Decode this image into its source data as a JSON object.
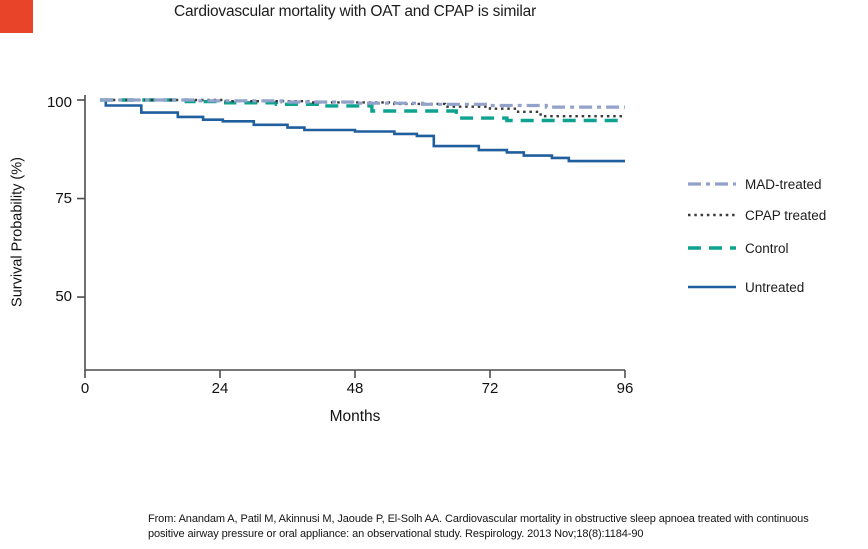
{
  "slide": {
    "corner_mark_color": "#e8442a",
    "citation_lines": [
      "From: Anandam A, Patil M, Akinnusi M, Jaoude P, El-Solh AA. Cardiovascular mortality in obstructive sleep apnoea treated with continuous",
      "positive airway pressure or oral appliance: an observational study. Respirology. 2013 Nov;18(8):1184-90"
    ]
  },
  "chart_data": {
    "type": "line",
    "subtype": "kaplan-meier-step",
    "title": "Cardiovascular mortality with OAT and CPAP is similar",
    "xlabel": "Months",
    "ylabel": "Survival Probability (%)",
    "xlim": [
      0,
      96
    ],
    "ylim": [
      31.5,
      100
    ],
    "xticks": [
      0,
      24,
      48,
      72,
      96
    ],
    "yticks": [
      100,
      75,
      50
    ],
    "grid": false,
    "legend_position": "right",
    "axis_color": "#4d4d4d",
    "series": [
      {
        "name": "Untreated",
        "color": "#205f9e",
        "style": "solid",
        "points": [
          [
            2.7,
            100
          ],
          [
            3.7,
            98.6
          ],
          [
            10,
            96.8
          ],
          [
            16.5,
            95.7
          ],
          [
            21,
            95.0
          ],
          [
            24.5,
            94.6
          ],
          [
            30,
            93.7
          ],
          [
            36,
            93.0
          ],
          [
            39,
            92.4
          ],
          [
            48,
            92.0
          ],
          [
            55,
            91.4
          ],
          [
            59,
            90.9
          ],
          [
            62,
            88.3
          ],
          [
            70,
            87.3
          ],
          [
            75,
            86.7
          ],
          [
            78,
            85.9
          ],
          [
            83,
            85.3
          ],
          [
            86,
            84.5
          ],
          [
            96,
            84.5
          ]
        ]
      },
      {
        "name": "Control",
        "color": "#0fa290",
        "style": "dash",
        "points": [
          [
            2.7,
            100
          ],
          [
            18,
            99.6
          ],
          [
            25,
            99.3
          ],
          [
            34,
            98.9
          ],
          [
            42,
            98.5
          ],
          [
            51,
            97.2
          ],
          [
            66,
            95.4
          ],
          [
            75,
            94.8
          ],
          [
            96,
            94.8
          ]
        ]
      },
      {
        "name": "CPAP treated",
        "color": "#3b3b3b",
        "style": "dotted",
        "points": [
          [
            2.7,
            100
          ],
          [
            25,
            99.7
          ],
          [
            40,
            99.4
          ],
          [
            55,
            99.0
          ],
          [
            64,
            98.3
          ],
          [
            72,
            97.8
          ],
          [
            77,
            97.0
          ],
          [
            81,
            95.9
          ],
          [
            96,
            95.7
          ]
        ]
      },
      {
        "name": "MAD-treated",
        "color": "#93a2ca",
        "style": "dashdot",
        "points": [
          [
            2.7,
            100
          ],
          [
            20,
            99.8
          ],
          [
            35,
            99.5
          ],
          [
            48,
            99.2
          ],
          [
            60,
            98.9
          ],
          [
            72,
            98.6
          ],
          [
            82,
            98.2
          ],
          [
            96,
            98.2
          ]
        ]
      }
    ],
    "legend_order": [
      "MAD-treated",
      "CPAP treated",
      "Control",
      "Untreated"
    ]
  }
}
